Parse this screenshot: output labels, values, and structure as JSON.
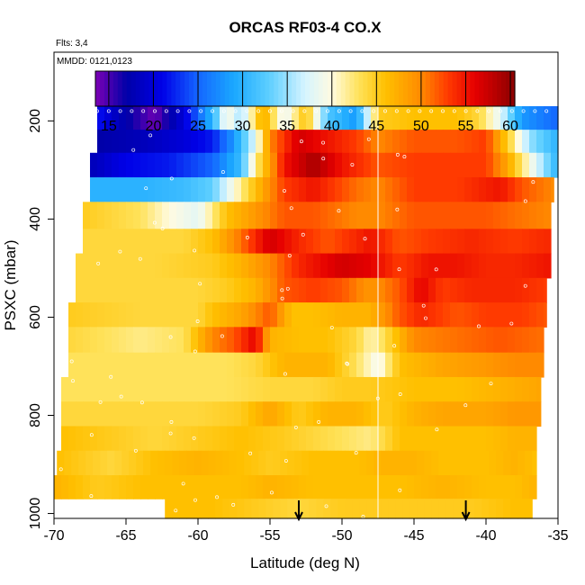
{
  "chart_data": {
    "type": "heatmap",
    "title": "ORCAS RF03-4 CO.X",
    "note_flights": "Flts: 3,4",
    "note_dates": "MMDD: 0121,0123",
    "xlabel": "Latitude (deg N)",
    "ylabel": "PSXC (mbar)",
    "xlim": [
      -70,
      -35
    ],
    "ylim": [
      1010,
      60
    ],
    "y_reversed": true,
    "x_ticks": [
      "-70",
      "-65",
      "-60",
      "-55",
      "-50",
      "-45",
      "-40",
      "-35"
    ],
    "x_tick_values": [
      -70,
      -65,
      -60,
      -55,
      -50,
      -45,
      -40,
      -35
    ],
    "y_ticks": [
      "200",
      "400",
      "600",
      "800",
      "1000"
    ],
    "y_tick_values": [
      200,
      400,
      600,
      800,
      1000
    ],
    "colorbar": {
      "range": [
        13.5,
        60.5
      ],
      "ticks": [
        "15",
        "20",
        "25",
        "30",
        "35",
        "40",
        "45",
        "50",
        "55",
        "60"
      ],
      "tick_values": [
        15,
        20,
        25,
        30,
        35,
        40,
        45,
        50,
        55,
        60
      ],
      "stops": [
        {
          "v": 13.5,
          "c": "#7d00b5"
        },
        {
          "v": 17,
          "c": "#0000a8"
        },
        {
          "v": 21,
          "c": "#0000e8"
        },
        {
          "v": 25,
          "c": "#1466ff"
        },
        {
          "v": 29,
          "c": "#1aa8ff"
        },
        {
          "v": 33,
          "c": "#5ecfff"
        },
        {
          "v": 37,
          "c": "#d6f4ff"
        },
        {
          "v": 40,
          "c": "#fffbe0"
        },
        {
          "v": 43,
          "c": "#ffe25a"
        },
        {
          "v": 46,
          "c": "#ffc000"
        },
        {
          "v": 50,
          "c": "#ff8a00"
        },
        {
          "v": 53,
          "c": "#ff3a00"
        },
        {
          "v": 56,
          "c": "#e60000"
        },
        {
          "v": 60.5,
          "c": "#8b0000"
        }
      ]
    },
    "grid_lat_step": 0.5,
    "layers": [
      {
        "p": [
          170,
          218
        ],
        "lat": [
          -67,
          -35
        ],
        "knots": [
          [
            -67,
            22
          ],
          [
            -65.5,
            18
          ],
          [
            -63,
            14
          ],
          [
            -61,
            20
          ],
          [
            -59,
            30
          ],
          [
            -58,
            40
          ],
          [
            -57,
            35
          ],
          [
            -55.5,
            48
          ],
          [
            -54,
            38
          ],
          [
            -52.5,
            46
          ],
          [
            -51,
            32
          ],
          [
            -49,
            28
          ],
          [
            -47.5,
            45
          ],
          [
            -45,
            46
          ],
          [
            -42,
            46
          ],
          [
            -40.5,
            44
          ],
          [
            -39,
            38
          ],
          [
            -37.5,
            28
          ],
          [
            -35,
            25
          ]
        ]
      },
      {
        "p": [
          218,
          265
        ],
        "lat": [
          -67,
          -35
        ],
        "knots": [
          [
            -67,
            17
          ],
          [
            -64,
            18
          ],
          [
            -61,
            20
          ],
          [
            -59,
            22
          ],
          [
            -57.5,
            28
          ],
          [
            -56,
            38
          ],
          [
            -55,
            50
          ],
          [
            -53,
            57
          ],
          [
            -51,
            55
          ],
          [
            -49,
            53
          ],
          [
            -47.5,
            50
          ],
          [
            -45,
            52
          ],
          [
            -42,
            52
          ],
          [
            -40,
            53
          ],
          [
            -38.5,
            45
          ],
          [
            -37,
            35
          ],
          [
            -35,
            30
          ]
        ]
      },
      {
        "p": [
          265,
          315
        ],
        "lat": [
          -67.5,
          -35
        ],
        "knots": [
          [
            -67.5,
            18
          ],
          [
            -65,
            21
          ],
          [
            -62,
            22
          ],
          [
            -59,
            25
          ],
          [
            -57,
            31
          ],
          [
            -56,
            42
          ],
          [
            -54,
            55
          ],
          [
            -52,
            59
          ],
          [
            -50,
            55
          ],
          [
            -47.5,
            52
          ],
          [
            -45,
            53
          ],
          [
            -42,
            53
          ],
          [
            -40,
            53
          ],
          [
            -38.5,
            48
          ],
          [
            -37,
            40
          ],
          [
            -35,
            30
          ]
        ]
      },
      {
        "p": [
          315,
          365
        ],
        "lat": [
          -67.5,
          -35.3
        ],
        "knots": [
          [
            -67.5,
            30
          ],
          [
            -64,
            30
          ],
          [
            -61,
            31
          ],
          [
            -59,
            33
          ],
          [
            -57,
            42
          ],
          [
            -55.5,
            48
          ],
          [
            -54,
            53
          ],
          [
            -52,
            55
          ],
          [
            -49,
            51
          ],
          [
            -47.5,
            50
          ],
          [
            -45,
            53
          ],
          [
            -42,
            53
          ],
          [
            -39,
            55
          ],
          [
            -37.5,
            52
          ],
          [
            -35.3,
            50
          ]
        ]
      },
      {
        "p": [
          365,
          420
        ],
        "lat": [
          -68,
          -35.5
        ],
        "knots": [
          [
            -68,
            45
          ],
          [
            -64,
            43
          ],
          [
            -62,
            40
          ],
          [
            -60,
            38
          ],
          [
            -58,
            46
          ],
          [
            -56,
            49
          ],
          [
            -54,
            52
          ],
          [
            -52,
            52
          ],
          [
            -49,
            50
          ],
          [
            -47.5,
            50
          ],
          [
            -45,
            52
          ],
          [
            -42,
            52
          ],
          [
            -40,
            52
          ],
          [
            -38,
            51
          ],
          [
            -35.5,
            50
          ]
        ]
      },
      {
        "p": [
          420,
          470
        ],
        "lat": [
          -68,
          -35.5
        ],
        "knots": [
          [
            -68,
            44
          ],
          [
            -64,
            44
          ],
          [
            -61,
            44
          ],
          [
            -59,
            46
          ],
          [
            -57,
            51
          ],
          [
            -55,
            57
          ],
          [
            -53,
            54
          ],
          [
            -51,
            52
          ],
          [
            -48,
            55
          ],
          [
            -46,
            52
          ],
          [
            -44,
            53
          ],
          [
            -41,
            54
          ],
          [
            -38,
            53
          ],
          [
            -35.5,
            54
          ]
        ]
      },
      {
        "p": [
          470,
          520
        ],
        "lat": [
          -68.5,
          -35.5
        ],
        "knots": [
          [
            -68.5,
            44
          ],
          [
            -63,
            44
          ],
          [
            -59,
            45
          ],
          [
            -57,
            47
          ],
          [
            -55,
            50
          ],
          [
            -53,
            54
          ],
          [
            -50,
            57
          ],
          [
            -48,
            56
          ],
          [
            -46,
            53
          ],
          [
            -44,
            55
          ],
          [
            -42,
            55
          ],
          [
            -40,
            54
          ],
          [
            -38,
            54
          ],
          [
            -35.5,
            55
          ]
        ]
      },
      {
        "p": [
          520,
          570
        ],
        "lat": [
          -68.5,
          -35.8
        ],
        "knots": [
          [
            -68.5,
            44
          ],
          [
            -63,
            44
          ],
          [
            -60,
            44
          ],
          [
            -58,
            45
          ],
          [
            -56,
            47
          ],
          [
            -54,
            52
          ],
          [
            -52,
            53
          ],
          [
            -50,
            52
          ],
          [
            -48,
            49
          ],
          [
            -46,
            52
          ],
          [
            -44.5,
            56
          ],
          [
            -43,
            53
          ],
          [
            -41,
            54
          ],
          [
            -38,
            54
          ],
          [
            -35.8,
            53
          ]
        ]
      },
      {
        "p": [
          570,
          620
        ],
        "lat": [
          -69,
          -35.8
        ],
        "knots": [
          [
            -69,
            45
          ],
          [
            -64,
            44
          ],
          [
            -60,
            44
          ],
          [
            -59,
            46
          ],
          [
            -57,
            48
          ],
          [
            -55,
            52
          ],
          [
            -53.5,
            46
          ],
          [
            -52,
            46
          ],
          [
            -50,
            47
          ],
          [
            -48,
            47
          ],
          [
            -46,
            52
          ],
          [
            -44.5,
            54
          ],
          [
            -42,
            52
          ],
          [
            -40,
            53
          ],
          [
            -37.5,
            53
          ],
          [
            -35.8,
            52
          ]
        ]
      },
      {
        "p": [
          620,
          672
        ],
        "lat": [
          -69,
          -36
        ],
        "knots": [
          [
            -69,
            44
          ],
          [
            -64,
            42
          ],
          [
            -61,
            43
          ],
          [
            -59,
            50
          ],
          [
            -57.5,
            52
          ],
          [
            -56,
            56
          ],
          [
            -55,
            47
          ],
          [
            -53,
            46
          ],
          [
            -51,
            46
          ],
          [
            -49,
            44
          ],
          [
            -48,
            41
          ],
          [
            -47.5,
            42
          ],
          [
            -45,
            50
          ],
          [
            -42,
            51
          ],
          [
            -39,
            52
          ],
          [
            -36,
            51
          ]
        ]
      },
      {
        "p": [
          672,
          722
        ],
        "lat": [
          -69,
          -36
        ],
        "knots": [
          [
            -69,
            43
          ],
          [
            -63,
            43
          ],
          [
            -58,
            43
          ],
          [
            -56,
            44
          ],
          [
            -54,
            47
          ],
          [
            -51,
            47
          ],
          [
            -49,
            43
          ],
          [
            -47.5,
            39
          ],
          [
            -46,
            46
          ],
          [
            -43,
            48
          ],
          [
            -40,
            49
          ],
          [
            -38,
            50
          ],
          [
            -36,
            50
          ]
        ]
      },
      {
        "p": [
          722,
          772
        ],
        "lat": [
          -69.5,
          -36.2
        ],
        "knots": [
          [
            -69.5,
            43
          ],
          [
            -63,
            43
          ],
          [
            -58,
            43
          ],
          [
            -55,
            44
          ],
          [
            -52,
            44
          ],
          [
            -50,
            45
          ],
          [
            -48,
            45
          ],
          [
            -45,
            46
          ],
          [
            -42,
            46
          ],
          [
            -39,
            47
          ],
          [
            -36.2,
            48
          ]
        ]
      },
      {
        "p": [
          772,
          822
        ],
        "lat": [
          -69.5,
          -36.2
        ],
        "knots": [
          [
            -69.5,
            44
          ],
          [
            -65,
            44
          ],
          [
            -60,
            44
          ],
          [
            -57,
            45
          ],
          [
            -55,
            48
          ],
          [
            -53,
            45
          ],
          [
            -51,
            47
          ],
          [
            -49,
            47
          ],
          [
            -47,
            45
          ],
          [
            -45,
            47
          ],
          [
            -43,
            48
          ],
          [
            -40,
            48
          ],
          [
            -38,
            49
          ],
          [
            -36.2,
            49
          ]
        ]
      },
      {
        "p": [
          822,
          872
        ],
        "lat": [
          -69.5,
          -36.5
        ],
        "knots": [
          [
            -69.5,
            46
          ],
          [
            -66,
            45
          ],
          [
            -63,
            44
          ],
          [
            -60,
            45
          ],
          [
            -57,
            46
          ],
          [
            -54,
            45
          ],
          [
            -52,
            44
          ],
          [
            -50,
            43
          ],
          [
            -48,
            42
          ],
          [
            -46,
            46
          ],
          [
            -43,
            46
          ],
          [
            -40,
            46
          ],
          [
            -38,
            47
          ],
          [
            -36.5,
            47
          ]
        ]
      },
      {
        "p": [
          872,
          922
        ],
        "lat": [
          -69.8,
          -36.5
        ],
        "knots": [
          [
            -69.8,
            46
          ],
          [
            -66,
            44
          ],
          [
            -63,
            46
          ],
          [
            -60,
            47
          ],
          [
            -57,
            46
          ],
          [
            -55,
            45
          ],
          [
            -52,
            46
          ],
          [
            -49,
            46
          ],
          [
            -47,
            47
          ],
          [
            -45,
            47
          ],
          [
            -43,
            46
          ],
          [
            -40,
            46
          ],
          [
            -38,
            47
          ],
          [
            -36.5,
            46
          ]
        ]
      },
      {
        "p": [
          922,
          970
        ],
        "lat": [
          -70,
          -36.5
        ],
        "knots": [
          [
            -70,
            47
          ],
          [
            -67,
            45
          ],
          [
            -64,
            46
          ],
          [
            -60,
            46
          ],
          [
            -57,
            46
          ],
          [
            -55,
            47
          ],
          [
            -52,
            46
          ],
          [
            -49,
            46
          ],
          [
            -46,
            46
          ],
          [
            -43,
            47
          ],
          [
            -40,
            46
          ],
          [
            -38,
            46
          ],
          [
            -36.5,
            47
          ]
        ]
      },
      {
        "p": [
          970,
          1010
        ],
        "lat": [
          -62.3,
          -36.8
        ],
        "knots": [
          [
            -62.3,
            46
          ],
          [
            -59,
            46
          ],
          [
            -56,
            45
          ],
          [
            -53,
            44
          ],
          [
            -50,
            45
          ],
          [
            -47,
            45
          ],
          [
            -44,
            45
          ],
          [
            -41,
            45
          ],
          [
            -38,
            46
          ],
          [
            -36.8,
            46
          ]
        ]
      }
    ],
    "separator_lat": -47.5,
    "arrows_lat": [
      -53,
      -41.4
    ],
    "marker_color": "#ffffff"
  }
}
